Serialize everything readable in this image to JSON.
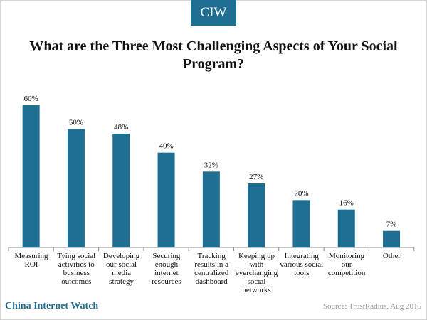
{
  "header": {
    "badge": "CIW"
  },
  "footer": {
    "brand": "China Internet Watch",
    "source": "Source: TrustRadius, Aug 2015"
  },
  "colors": {
    "bar": "#1f6f93",
    "badge": "#1f6f93",
    "brand": "#1f6f93"
  },
  "chart_data": {
    "type": "bar",
    "title": "What are the Three Most Challenging Aspects of Your Social Program?",
    "xlabel": "",
    "ylabel": "",
    "ylim": [
      0,
      60
    ],
    "grid": false,
    "legend": "none",
    "categories": [
      "Measuring ROI",
      "Tying social activities to business outcomes",
      "Developing our social media strategy",
      "Securing enough internet resources",
      "Tracking results in a centralized dashboard",
      "Keeping up with everchanging social networks",
      "Integrating various social tools",
      "Monitoring our competition",
      "Other"
    ],
    "values": [
      60,
      50,
      48,
      40,
      32,
      27,
      20,
      16,
      7
    ],
    "value_labels": [
      "60%",
      "50%",
      "48%",
      "40%",
      "32%",
      "27%",
      "20%",
      "16%",
      "7%"
    ]
  }
}
